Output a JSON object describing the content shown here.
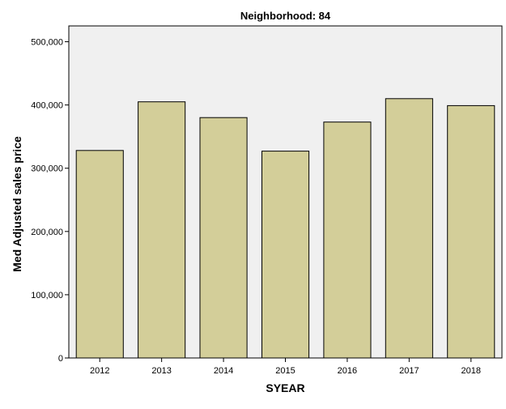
{
  "chart_data": {
    "type": "bar",
    "title": "Neighborhood: 84",
    "xlabel": "SYEAR",
    "ylabel": "Med Adjusted sales price",
    "categories": [
      "2012",
      "2013",
      "2014",
      "2015",
      "2016",
      "2017",
      "2018"
    ],
    "values": [
      328000,
      405000,
      380000,
      327000,
      373000,
      410000,
      399000
    ],
    "ylim": [
      0,
      525000
    ],
    "yticks": [
      0,
      100000,
      200000,
      300000,
      400000,
      500000
    ],
    "ytick_labels": [
      "0",
      "100,000",
      "200,000",
      "300,000",
      "400,000",
      "500,000"
    ],
    "grid": false,
    "legend": "none",
    "colors": {
      "bar_fill": "#d3ce99",
      "bar_stroke": "#000000",
      "plot_background": "#f0f0f0",
      "page_background": "#ffffff"
    }
  }
}
